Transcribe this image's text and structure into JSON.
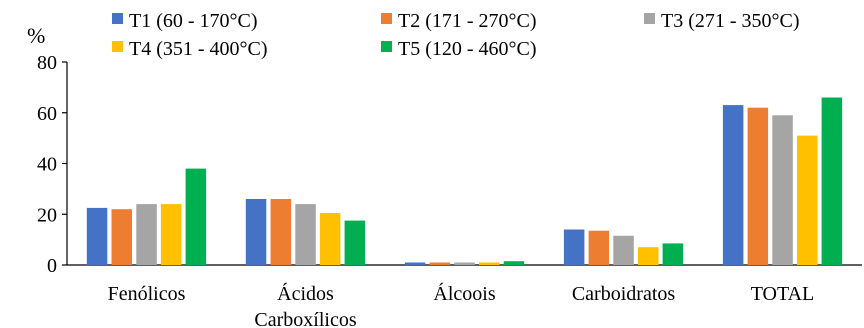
{
  "chart_data": {
    "type": "bar",
    "title": "",
    "ylabel": "%",
    "xlabel": "",
    "ylim": [
      0,
      80
    ],
    "yticks": [
      0,
      20,
      40,
      60,
      80
    ],
    "grid": false,
    "legend": "top",
    "categories": [
      [
        "Fenólicos"
      ],
      [
        "Ácidos",
        "Carboxílicos"
      ],
      [
        "Álcoois"
      ],
      [
        "Carboidratos"
      ],
      [
        "TOTAL"
      ]
    ],
    "series": [
      {
        "name": "T1 (60 - 170°C)",
        "color": "#4472C4",
        "values": [
          22.5,
          26,
          1,
          14,
          63
        ]
      },
      {
        "name": "T2 (171 - 270°C)",
        "color": "#ED7D31",
        "values": [
          22,
          26,
          1,
          13.5,
          62
        ]
      },
      {
        "name": "T3 (271 - 350°C)",
        "color": "#A5A5A5",
        "values": [
          24,
          24,
          1,
          11.5,
          59
        ]
      },
      {
        "name": "T4 (351 - 400°C)",
        "color": "#FFC000",
        "values": [
          24,
          20.5,
          1,
          7,
          51
        ]
      },
      {
        "name": "T5 (120 - 460°C)",
        "color": "#00B050",
        "values": [
          38,
          17.5,
          1.5,
          8.5,
          66
        ]
      }
    ]
  }
}
